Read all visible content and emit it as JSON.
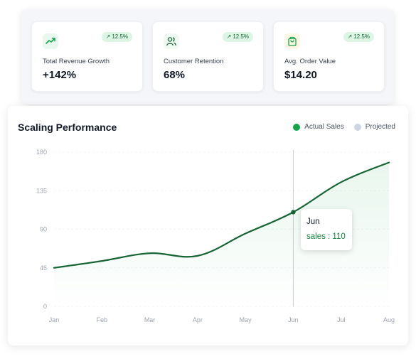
{
  "kpis": [
    {
      "icon": "trending-up-icon",
      "badge": "12.5%",
      "label": "Total Revenue Growth",
      "value": "+142%"
    },
    {
      "icon": "users-icon",
      "badge": "12.5%",
      "label": "Customer Retention",
      "value": "68%"
    },
    {
      "icon": "shopping-bag-icon",
      "badge": "12.5%",
      "label": "Avg. Order Value",
      "value": "$14.20"
    }
  ],
  "chart": {
    "title": "Scaling Performance",
    "legend": [
      {
        "label": "Actual Sales",
        "color": "#16a34a"
      },
      {
        "label": "Projected",
        "color": "#cbd5e1"
      }
    ],
    "tooltip": {
      "title": "Jun",
      "text": "sales : 110"
    }
  },
  "chart_data": {
    "type": "area",
    "categories": [
      "Jan",
      "Feb",
      "Mar",
      "Apr",
      "May",
      "Jun",
      "Jul",
      "Aug"
    ],
    "series": [
      {
        "name": "sales",
        "values": [
          45,
          53,
          62,
          59,
          85,
          110,
          145,
          168
        ]
      }
    ],
    "yticks": [
      0,
      45,
      90,
      135,
      180
    ],
    "ylim": [
      0,
      180
    ],
    "highlight_index": 5,
    "line_color": "#166534",
    "fill_color": "#16a34a"
  }
}
